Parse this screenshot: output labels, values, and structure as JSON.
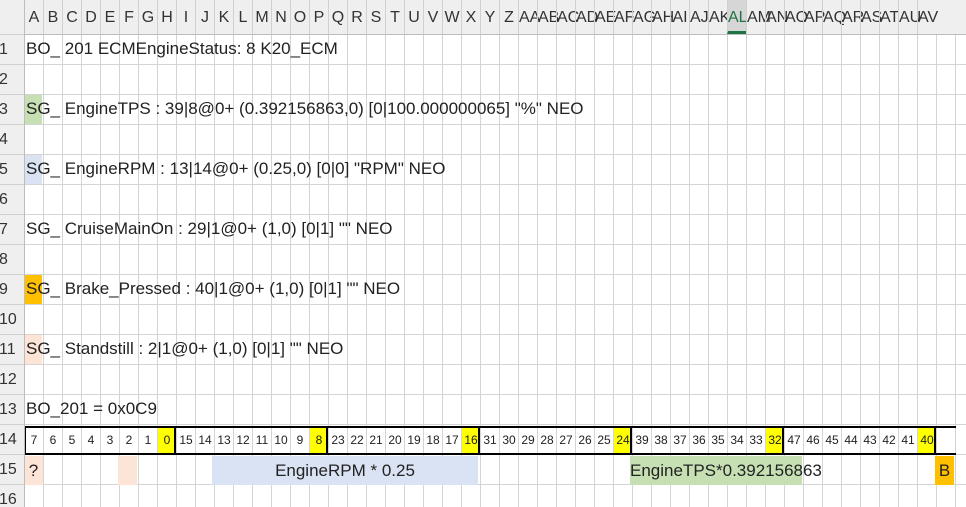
{
  "sheet": {
    "columns": [
      "A",
      "B",
      "C",
      "D",
      "E",
      "F",
      "G",
      "H",
      "I",
      "J",
      "K",
      "L",
      "M",
      "N",
      "O",
      "P",
      "Q",
      "R",
      "S",
      "T",
      "U",
      "V",
      "W",
      "X",
      "Y",
      "Z",
      "AA",
      "AB",
      "AC",
      "AD",
      "AE",
      "AF",
      "AG",
      "AH",
      "AI",
      "AJ",
      "AK",
      "AL",
      "AM",
      "AN",
      "AO",
      "AP",
      "AQ",
      "AR",
      "AS",
      "AT",
      "AU",
      "AV"
    ],
    "selected_column": "AL",
    "rows": [
      "1",
      "2",
      "3",
      "4",
      "5",
      "6",
      "7",
      "8",
      "9",
      "10",
      "11",
      "12",
      "13",
      "14",
      "15",
      "16"
    ]
  },
  "cells": {
    "r1": "BO_ 201 ECMEngineStatus: 8 K20_ECM",
    "r3": "SG_ EngineTPS : 39|8@0+ (0.392156863,0) [0|100.000000065] \"%\" NEO",
    "r5": "SG_ EngineRPM : 13|14@0+ (0.25,0) [0|0] \"RPM\" NEO",
    "r7": "SG_ CruiseMainOn : 29|1@0+ (1,0) [0|1] \"\" NEO",
    "r9": "SG_ Brake_Pressed : 40|1@0+ (1,0) [0|1] \"\" NEO",
    "r11": "SG_ Standstill : 2|1@0+ (1,0) [0|1] \"\" NEO",
    "r13": "BO_201 = 0x0C9"
  },
  "highlights": {
    "r3": "#c6e0b4",
    "r5": "#dae3f3",
    "r9": "#ffc000",
    "r11": "#fce4d6"
  },
  "bits": [
    "7",
    "6",
    "5",
    "4",
    "3",
    "2",
    "1",
    "0",
    "15",
    "14",
    "13",
    "12",
    "11",
    "10",
    "9",
    "8",
    "23",
    "22",
    "21",
    "20",
    "19",
    "18",
    "17",
    "16",
    "31",
    "30",
    "29",
    "28",
    "27",
    "26",
    "25",
    "24",
    "39",
    "38",
    "37",
    "36",
    "35",
    "34",
    "33",
    "32",
    "47",
    "46",
    "45",
    "44",
    "43",
    "42",
    "41",
    "40"
  ],
  "bit_highlight": "#ffff00",
  "row15": {
    "unknown_mark": "?",
    "rpm_label": "EngineRPM * 0.25",
    "tps_label": "EngineTPS*0.392156863",
    "brake_mark": "B"
  },
  "colors": {
    "rpm": "#dae3f3",
    "tps": "#c6e0b4",
    "standstill": "#fce4d6",
    "brake": "#ffc000"
  }
}
